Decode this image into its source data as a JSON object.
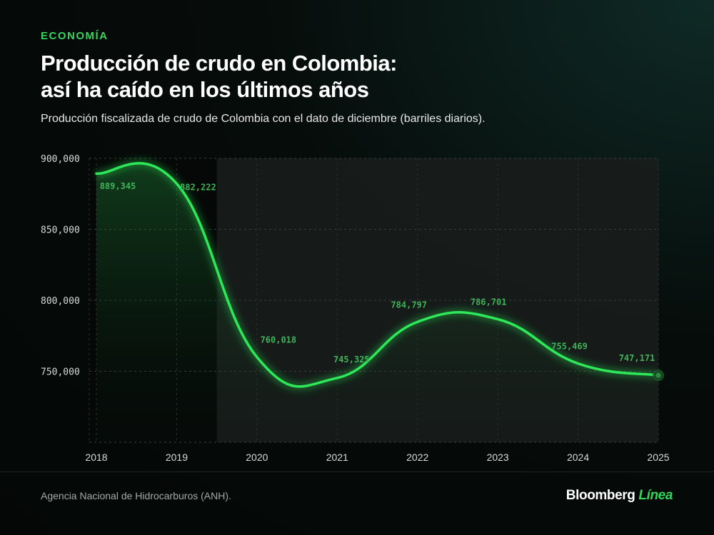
{
  "section": "ECONOMÍA",
  "title_line1": "Producción de crudo en Colombia:",
  "title_line2": "así ha caído en los últimos años",
  "subtitle": "Producción fiscalizada de crudo de Colombia con el dato de diciembre (barriles diarios).",
  "source": "Agencia Nacional de Hidrocarburos (ANH).",
  "logo": {
    "brand": "Bloomberg",
    "accent": "Línea"
  },
  "colors": {
    "accent": "#33d65a",
    "line": "#2ee85a",
    "label": "#3fb35a"
  },
  "chart_data": {
    "type": "line",
    "title": "Producción de crudo en Colombia: así ha caído en los últimos años",
    "subtitle": "Producción fiscalizada de crudo de Colombia con el dato de diciembre (barriles diarios).",
    "xlabel": "",
    "ylabel": "",
    "x": [
      "2018",
      "2019",
      "2020",
      "2021",
      "2022",
      "2023",
      "2024",
      "2025"
    ],
    "values": [
      889345,
      882222,
      760018,
      745325,
      784797,
      786701,
      755469,
      747171
    ],
    "data_labels": [
      "889,345",
      "882,222",
      "760,018",
      "745,325",
      "784,797",
      "786,701",
      "755,469",
      "747,171"
    ],
    "ylim": [
      700000,
      900000
    ],
    "yticks": [
      900000,
      850000,
      800000,
      750000
    ],
    "ytick_labels": [
      "900,000",
      "850,000",
      "800,000",
      "750,000"
    ],
    "highlight_from": "2019",
    "grid": true,
    "legend": "none"
  }
}
